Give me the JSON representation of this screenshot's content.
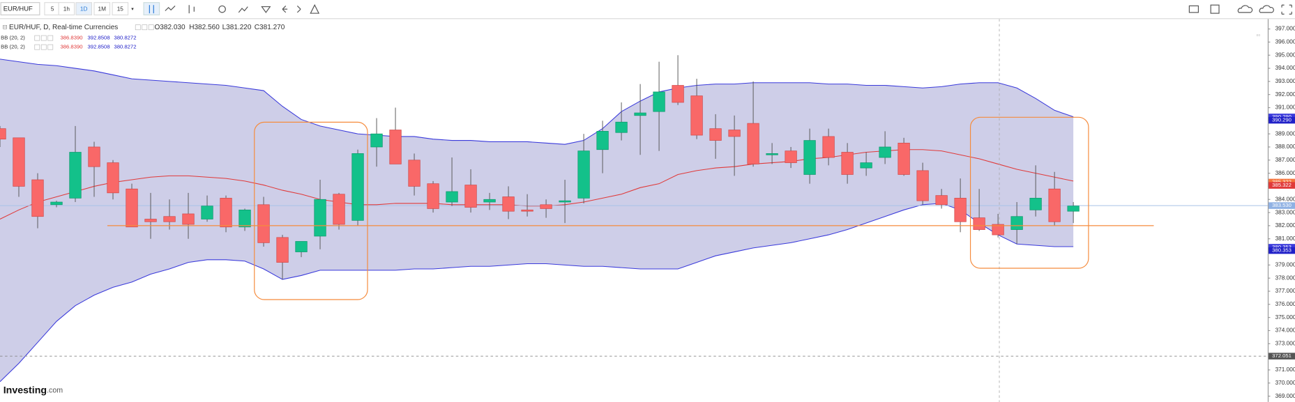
{
  "toolbar": {
    "symbol": "EUR/HUF",
    "intervals": [
      "5",
      "1h",
      "1D",
      "1M",
      "15"
    ]
  },
  "logo": {
    "name": "Investing",
    "suffix": ".com"
  },
  "chart_data": {
    "type": "candlestick",
    "title": "EUR/HUF, D, Real-time Currencies",
    "ohlc_legend": [
      "O382.030",
      "H382.560",
      "L381.220",
      "C381.270"
    ],
    "indicators": [
      {
        "name": "BB (20, 2)",
        "values": [
          "386.8390",
          "392.8508",
          "380.8272"
        ]
      },
      {
        "name": "BB (20, 2)",
        "values": [
          "386.8390",
          "392.8508",
          "380.8272"
        ]
      }
    ],
    "up_color": "#13c18a",
    "down_color": "#f96868",
    "open": [
      389.4,
      388.7,
      385.5,
      383.6,
      384.1,
      388.0,
      386.8,
      384.8,
      382.5,
      382.7,
      382.9,
      382.5,
      384.1,
      381.9,
      383.6,
      381.1,
      380.0,
      381.2,
      384.4,
      382.4,
      388.0,
      389.3,
      387.0,
      385.2,
      383.8,
      385.1,
      383.8,
      384.2,
      383.2,
      383.6,
      383.8,
      384.1,
      387.8,
      389.1,
      390.4,
      390.7,
      392.7,
      391.9,
      389.4,
      389.3,
      389.8,
      387.4,
      387.7,
      385.9,
      388.8,
      387.6,
      386.4,
      387.2,
      388.3,
      386.2,
      384.3,
      384.1,
      382.6,
      382.1,
      381.7,
      383.2,
      384.8,
      383.1
    ],
    "high": [
      389.6,
      388.7,
      386.0,
      383.9,
      389.6,
      388.4,
      387.0,
      385.2,
      384.5,
      384.0,
      384.5,
      384.3,
      384.3,
      383.3,
      384.2,
      381.3,
      380.8,
      385.5,
      384.5,
      387.8,
      390.2,
      391.0,
      387.5,
      385.4,
      387.2,
      386.3,
      384.5,
      385.0,
      384.4,
      384.0,
      385.5,
      389.0,
      390.0,
      391.4,
      392.8,
      394.5,
      395.0,
      393.2,
      390.5,
      390.4,
      393.0,
      388.3,
      388.0,
      389.4,
      389.4,
      388.3,
      387.6,
      389.2,
      388.7,
      386.8,
      384.8,
      385.6,
      384.8,
      382.9,
      383.8,
      386.6,
      386.1,
      383.8
    ],
    "low": [
      388.0,
      384.2,
      381.8,
      383.4,
      383.8,
      384.2,
      384.0,
      381.9,
      381.0,
      381.7,
      381.0,
      382.3,
      381.5,
      381.6,
      380.4,
      377.9,
      379.6,
      380.2,
      381.7,
      382.0,
      386.5,
      386.7,
      384.3,
      383.0,
      383.5,
      383.0,
      383.2,
      382.5,
      382.7,
      382.6,
      382.2,
      383.7,
      386.0,
      388.5,
      387.4,
      387.7,
      391.2,
      388.6,
      387.1,
      385.8,
      386.5,
      386.7,
      386.4,
      385.2,
      386.6,
      385.2,
      385.8,
      386.7,
      385.8,
      383.6,
      383.3,
      381.5,
      381.6,
      381.1,
      380.6,
      382.7,
      382.0,
      382.2
    ],
    "close": [
      388.6,
      385.0,
      382.7,
      383.8,
      387.6,
      386.5,
      384.5,
      381.9,
      382.3,
      382.3,
      382.1,
      383.5,
      381.9,
      383.2,
      380.7,
      379.2,
      380.8,
      384.0,
      382.1,
      387.5,
      389.0,
      386.7,
      385.0,
      383.3,
      384.6,
      383.4,
      384.0,
      383.1,
      383.1,
      383.3,
      383.9,
      387.7,
      389.2,
      389.9,
      390.6,
      392.2,
      391.4,
      388.9,
      388.5,
      388.8,
      386.7,
      387.5,
      386.8,
      388.5,
      387.2,
      385.9,
      386.8,
      388.0,
      385.9,
      383.9,
      383.6,
      382.3,
      381.7,
      381.3,
      382.7,
      384.1,
      382.3,
      383.5
    ],
    "bands": {
      "fill": "#c9c9e6",
      "upper": {
        "color": "#3a3adb",
        "values": [
          394.7,
          394.5,
          394.3,
          394.2,
          394.0,
          393.8,
          393.5,
          393.2,
          393.1,
          393.0,
          392.9,
          392.8,
          392.7,
          392.5,
          392.3,
          391.1,
          390.1,
          389.6,
          389.3,
          389.0,
          388.9,
          388.8,
          388.8,
          388.6,
          388.5,
          388.5,
          388.4,
          388.4,
          388.4,
          388.3,
          388.2,
          388.5,
          389.4,
          390.7,
          391.5,
          392.2,
          392.5,
          392.7,
          392.8,
          392.8,
          392.9,
          392.9,
          392.9,
          392.9,
          392.8,
          392.8,
          392.7,
          392.7,
          392.6,
          392.5,
          392.6,
          392.8,
          392.9,
          392.9,
          392.5,
          391.7,
          390.8,
          390.3
        ]
      },
      "middle": {
        "color": "#e03a3a",
        "values": [
          382.5,
          383.2,
          383.8,
          384.2,
          384.6,
          385.0,
          385.3,
          385.5,
          385.7,
          385.8,
          385.8,
          385.7,
          385.6,
          385.4,
          385.1,
          384.7,
          384.4,
          384.0,
          383.8,
          383.6,
          383.6,
          383.7,
          383.7,
          383.7,
          383.6,
          383.6,
          383.6,
          383.6,
          383.5,
          383.5,
          383.6,
          383.8,
          384.1,
          384.4,
          384.9,
          385.2,
          385.9,
          386.2,
          386.4,
          386.5,
          386.7,
          386.8,
          386.9,
          387.1,
          387.2,
          387.4,
          387.6,
          387.7,
          387.8,
          387.8,
          387.7,
          387.4,
          387.1,
          386.7,
          386.3,
          386.0,
          385.7,
          385.4
        ]
      },
      "lower": {
        "color": "#3a3adb",
        "values": [
          370.1,
          371.5,
          373.1,
          374.7,
          375.9,
          376.7,
          377.3,
          377.7,
          378.3,
          378.7,
          379.2,
          379.4,
          379.4,
          379.3,
          378.7,
          377.9,
          378.2,
          378.6,
          378.6,
          378.6,
          378.6,
          378.6,
          378.7,
          378.7,
          378.8,
          378.9,
          378.9,
          379.0,
          379.1,
          379.1,
          379.0,
          378.9,
          378.9,
          378.8,
          378.7,
          378.7,
          378.7,
          379.2,
          379.7,
          380.0,
          380.3,
          380.5,
          380.7,
          381.0,
          381.3,
          381.7,
          382.2,
          382.7,
          383.2,
          383.6,
          383.7,
          383.2,
          382.2,
          381.3,
          380.6,
          380.5,
          380.4,
          380.4
        ]
      }
    },
    "horizontal_line": {
      "value": 382.0,
      "color": "#f58b3c"
    },
    "current_price": {
      "value": 383.53,
      "color": "#a9c2e8"
    },
    "crosshair": {
      "value": 372.051,
      "label": "372.051"
    },
    "price_labels": [
      {
        "value": 390.29,
        "label": "390.290",
        "color": "#3a3adb"
      },
      {
        "value": 390.29,
        "label": "390.290",
        "color": "#2020c8"
      },
      {
        "value": 385.322,
        "label": "385.322",
        "color": "#f5743c"
      },
      {
        "value": 385.322,
        "label": "385.322",
        "color": "#e03a3a"
      },
      {
        "value": 383.53,
        "label": "383.530",
        "color": "#8fb1e3"
      },
      {
        "value": 380.353,
        "label": "380.353",
        "color": "#3a3adb"
      },
      {
        "value": 380.353,
        "label": "380.353",
        "color": "#2020c8"
      }
    ],
    "ylim": [
      369,
      397
    ],
    "yticks": [
      {
        "value": 369,
        "label": "369.000"
      },
      {
        "value": 370,
        "label": "370.000"
      },
      {
        "value": 371,
        "label": "371.000"
      },
      {
        "value": 372,
        "label": "372.000"
      },
      {
        "value": 373,
        "label": "373.000"
      },
      {
        "value": 374,
        "label": "374.000"
      },
      {
        "value": 375,
        "label": "375.000"
      },
      {
        "value": 376,
        "label": "376.000"
      },
      {
        "value": 377,
        "label": "377.000"
      },
      {
        "value": 378,
        "label": "378.000"
      },
      {
        "value": 379,
        "label": "379.000"
      },
      {
        "value": 380,
        "label": "380.000"
      },
      {
        "value": 381,
        "label": "381.000"
      },
      {
        "value": 382,
        "label": "382.000"
      },
      {
        "value": 383,
        "label": "383.000"
      },
      {
        "value": 384,
        "label": "384.000"
      },
      {
        "value": 385,
        "label": "385.000"
      },
      {
        "value": 386,
        "label": "386.000"
      },
      {
        "value": 387,
        "label": "387.000"
      },
      {
        "value": 388,
        "label": "388.000"
      },
      {
        "value": 389,
        "label": "389.000"
      },
      {
        "value": 390,
        "label": "390.000"
      },
      {
        "value": 391,
        "label": "391.000"
      },
      {
        "value": 392,
        "label": "392.000"
      },
      {
        "value": 393,
        "label": "393.000"
      },
      {
        "value": 394,
        "label": "394.000"
      },
      {
        "value": 395,
        "label": "395.000"
      },
      {
        "value": 396,
        "label": "396.000"
      },
      {
        "value": 397,
        "label": "397.000"
      }
    ]
  }
}
